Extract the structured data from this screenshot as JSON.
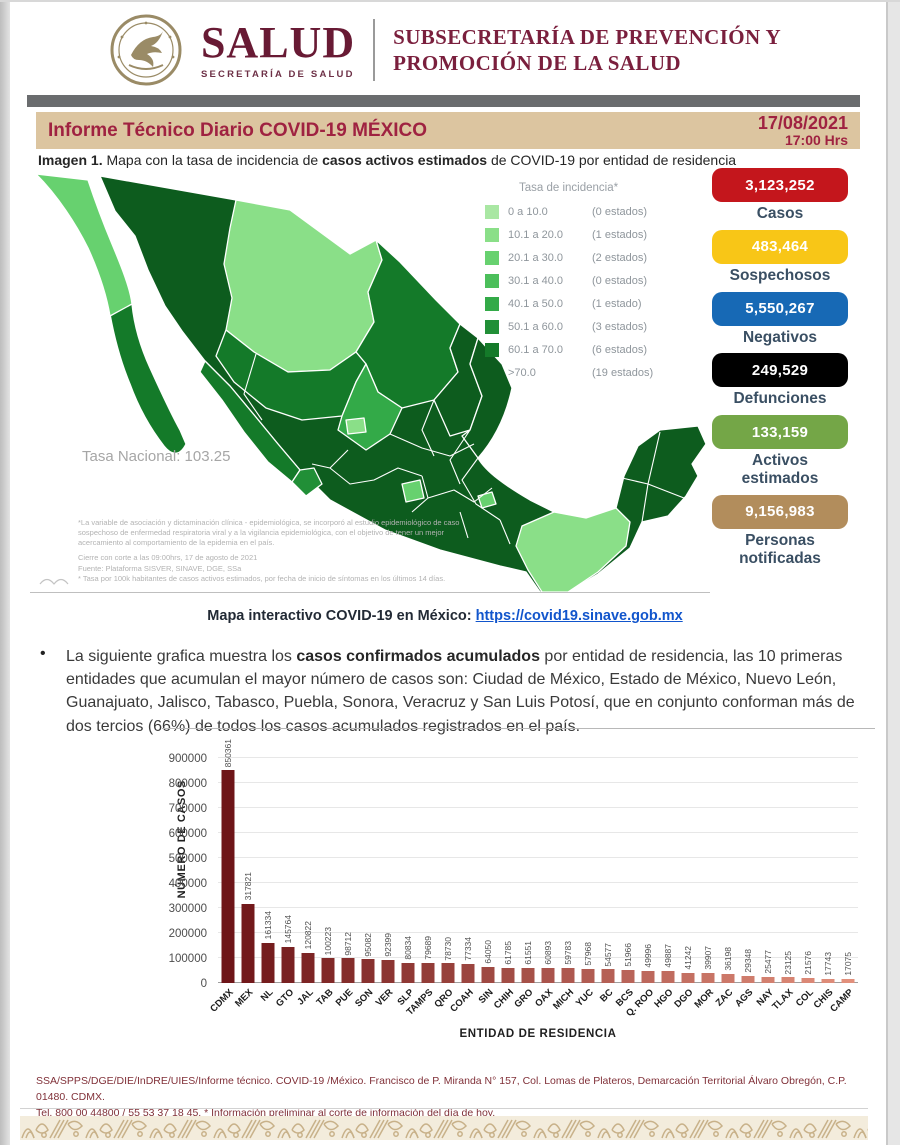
{
  "header": {
    "wordmark": "SALUD",
    "wordmark_sub": "SECRETARÍA DE SALUD",
    "department_line1": "SUBSECRETARÍA DE PREVENCIÓN Y",
    "department_line2": "PROMOCIÓN DE LA SALUD"
  },
  "title_bar": {
    "title": "Informe Técnico Diario COVID-19 MÉXICO",
    "date": "17/08/2021",
    "time": "17:00 Hrs"
  },
  "caption": {
    "label": "Imagen 1.",
    "pre": " Mapa con la tasa de incidencia de ",
    "bold": "casos activos estimados",
    "post": " de COVID-19 por entidad de residencia"
  },
  "map": {
    "legend_title": "Tasa de incidencia*",
    "legend": [
      {
        "range": "0    a 10.0",
        "count": "(0 estados)",
        "color": "#a9e7a3"
      },
      {
        "range": "10.1 a 20.0",
        "count": "(1 estados)",
        "color": "#8adf88"
      },
      {
        "range": "20.1 a 30.0",
        "count": "(2 estados)",
        "color": "#67d16f"
      },
      {
        "range": "30.1 a 40.0",
        "count": "(0 estados)",
        "color": "#4cbf5b"
      },
      {
        "range": "40.1 a 50.0",
        "count": "(1 estado)",
        "color": "#33aa48"
      },
      {
        "range": "50.1 a 60.0",
        "count": "(3 estados)",
        "color": "#218f37"
      },
      {
        "range": "60.1 a 70.0",
        "count": "(6 estados)",
        "color": "#147a29"
      },
      {
        "range": ">70.0",
        "count": "(19 estados)",
        "color": "#0d5c1e"
      }
    ],
    "tasa_nacional": "Tasa Nacional: 103.25",
    "footnote_paragraph": "*La variable de asociación y dictaminación clínica - epidemiológica, se incorporó al estudio epidemiológico de caso sospechoso de enfermedad respiratoria viral y a la vigilancia epidemiológica, con el objetivo de tener un mejor acercamiento al comportamiento de la epidemia en el país.",
    "footnote_cierre": "Cierre con corte a las 09:00hrs, 17 de agosto de 2021",
    "footnote_fuente": "Fuente: Plataforma SISVER, SINAVE, DGE, SSa",
    "footnote_tasa": "* Tasa por 100k habitantes de casos activos estimados, por fecha de inicio de síntomas en los últimos 14 días."
  },
  "stats": [
    {
      "value": "3,123,252",
      "label": "Casos",
      "color": "#c4161c",
      "text_color": "#ffffff"
    },
    {
      "value": "483,464",
      "label": "Sospechosos",
      "color": "#f8c617",
      "text_color": "#ffffff"
    },
    {
      "value": "5,550,267",
      "label": "Negativos",
      "color": "#1769b5",
      "text_color": "#ffffff"
    },
    {
      "value": "249,529",
      "label": "Defunciones",
      "color": "#000000",
      "text_color": "#ffffff"
    },
    {
      "value": "133,159",
      "label": "Activos estimados",
      "color": "#74a647",
      "text_color": "#ffffff"
    },
    {
      "value": "9,156,983",
      "label": "Personas notificadas",
      "color": "#b28d5c",
      "text_color": "#ffffff"
    }
  ],
  "interactive_link": {
    "label": "Mapa interactivo COVID-19 en México:",
    "url_text": "https://covid19.sinave.gob.mx"
  },
  "bullet": {
    "pre": "La siguiente grafica muestra los ",
    "bold": "casos confirmados acumulados",
    "post": " por entidad de residencia, las 10 primeras entidades que acumulan el mayor número de casos son: Ciudad de México, Estado de México, Nuevo León, Guanajuato, Jalisco, Tabasco, Puebla, Sonora, Veracruz y San Luis Potosí, que en conjunto conforman más de dos tercios (66%) de todos los casos acumulados registrados en el país."
  },
  "chart_data": {
    "type": "bar",
    "title": "",
    "categories": [
      "CDMX",
      "MEX",
      "NL",
      "GTO",
      "JAL",
      "TAB",
      "PUE",
      "SON",
      "VER",
      "SLP",
      "TAMPS",
      "QRO",
      "COAH",
      "SIN",
      "CHIH",
      "GRO",
      "OAX",
      "MICH",
      "YUC",
      "BC",
      "BCS",
      "Q. ROO",
      "HGO",
      "DGO",
      "MOR",
      "ZAC",
      "AGS",
      "NAY",
      "TLAX",
      "COL",
      "CHIS",
      "CAMP"
    ],
    "values": [
      850361,
      317821,
      161334,
      145764,
      120822,
      100223,
      98712,
      95082,
      92399,
      80834,
      79689,
      78730,
      77334,
      64050,
      61785,
      61551,
      60893,
      59783,
      57968,
      54577,
      51966,
      49996,
      49887,
      41242,
      39907,
      36198,
      29348,
      25477,
      23125,
      21576,
      17743,
      17075
    ],
    "xlabel": "ENTIDAD DE RESIDENCIA",
    "ylabel": "NÚMERO DE CASOS",
    "ylim": [
      0,
      900000
    ],
    "ytick_step": 100000,
    "grid": true,
    "legend_position": "none",
    "bar_color_dark": "#6e1518",
    "bar_color_light": "#e2907c"
  },
  "footer": {
    "line1": "SSA/SPPS/DGE/DIE/InDRE/UIES/Informe técnico. COVID-19 /México. Francisco de P. Miranda N° 157, Col. Lomas de Plateros, Demarcación Territorial Álvaro Obregón, C.P. 01480. CDMX.",
    "line2": "Tel. 800 00 44800 / 55 53 37 18 45. * Información preliminar al corte de información del día de hoy."
  }
}
